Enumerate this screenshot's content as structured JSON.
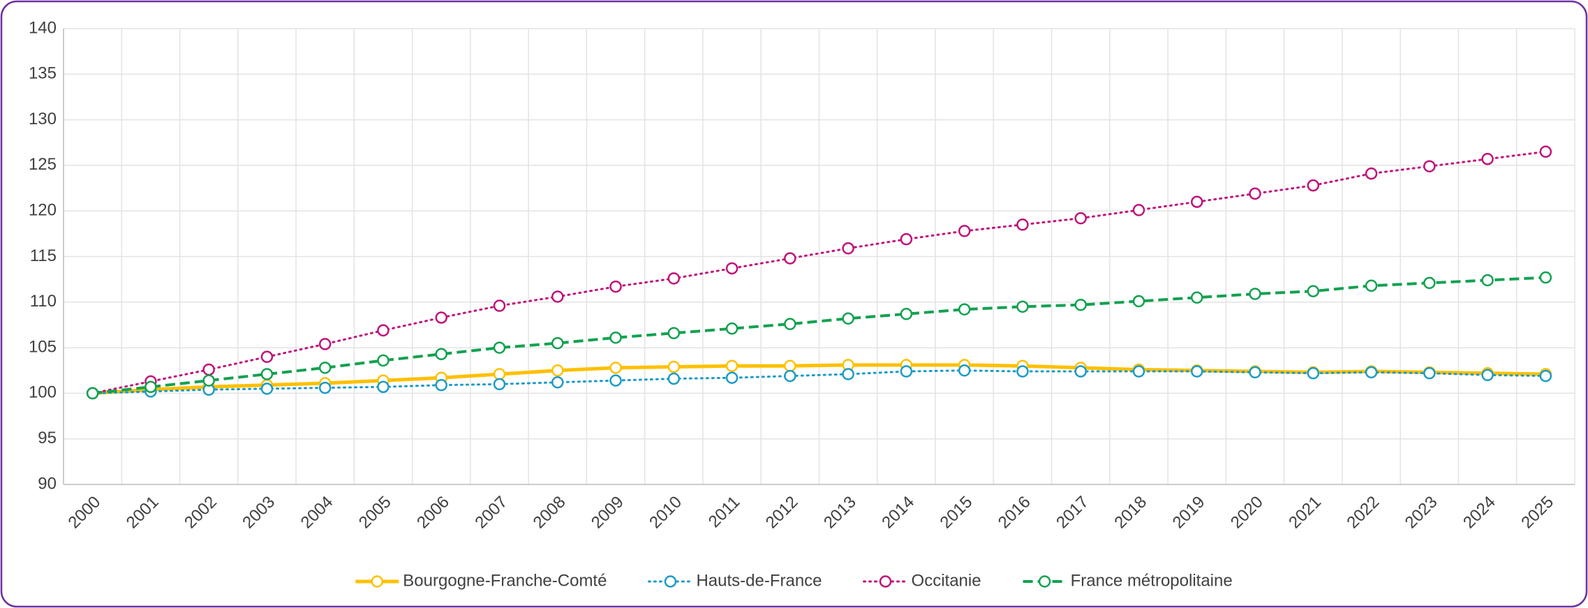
{
  "chart_data": {
    "type": "line",
    "categories": [
      "2000",
      "2001",
      "2002",
      "2003",
      "2004",
      "2005",
      "2006",
      "2007",
      "2008",
      "2009",
      "2010",
      "2011",
      "2012",
      "2013",
      "2014",
      "2015",
      "2016",
      "2017",
      "2018",
      "2019",
      "2020",
      "2021",
      "2022",
      "2023",
      "2024",
      "2025"
    ],
    "series": [
      {
        "name": "Bourgogne-Franche-Comté",
        "color": "#ffc000",
        "dash": "solid",
        "values": [
          100,
          100.4,
          100.7,
          100.9,
          101.1,
          101.4,
          101.7,
          102.1,
          102.5,
          102.8,
          102.9,
          103.0,
          103.0,
          103.1,
          103.1,
          103.1,
          103.0,
          102.8,
          102.6,
          102.5,
          102.4,
          102.3,
          102.4,
          102.3,
          102.2,
          102.1
        ]
      },
      {
        "name": "Hauts-de-France",
        "color": "#1b9bc7",
        "dash": "dotted",
        "values": [
          100,
          100.2,
          100.4,
          100.5,
          100.6,
          100.7,
          100.9,
          101.0,
          101.2,
          101.4,
          101.6,
          101.7,
          101.9,
          102.1,
          102.4,
          102.5,
          102.4,
          102.4,
          102.4,
          102.4,
          102.3,
          102.2,
          102.3,
          102.2,
          102.0,
          101.9
        ]
      },
      {
        "name": "Occitanie",
        "color": "#c0137a",
        "dash": "dotted",
        "values": [
          100,
          101.3,
          102.6,
          104.0,
          105.4,
          106.9,
          108.3,
          109.6,
          110.6,
          111.7,
          112.6,
          113.7,
          114.8,
          115.9,
          116.9,
          117.8,
          118.5,
          119.2,
          120.1,
          121.0,
          121.9,
          122.8,
          124.1,
          124.9,
          125.7,
          126.5
        ]
      },
      {
        "name": "France métropolitaine",
        "color": "#12a150",
        "dash": "dashed",
        "values": [
          100,
          100.7,
          101.4,
          102.1,
          102.8,
          103.6,
          104.3,
          105.0,
          105.5,
          106.1,
          106.6,
          107.1,
          107.6,
          108.2,
          108.7,
          109.2,
          109.5,
          109.7,
          110.1,
          110.5,
          110.9,
          111.2,
          111.8,
          112.1,
          112.4,
          112.7
        ]
      }
    ],
    "ylim": [
      90,
      140
    ],
    "yticks": [
      90,
      95,
      100,
      105,
      110,
      115,
      120,
      125,
      130,
      135,
      140
    ],
    "grid": true,
    "legend": "bottom"
  }
}
